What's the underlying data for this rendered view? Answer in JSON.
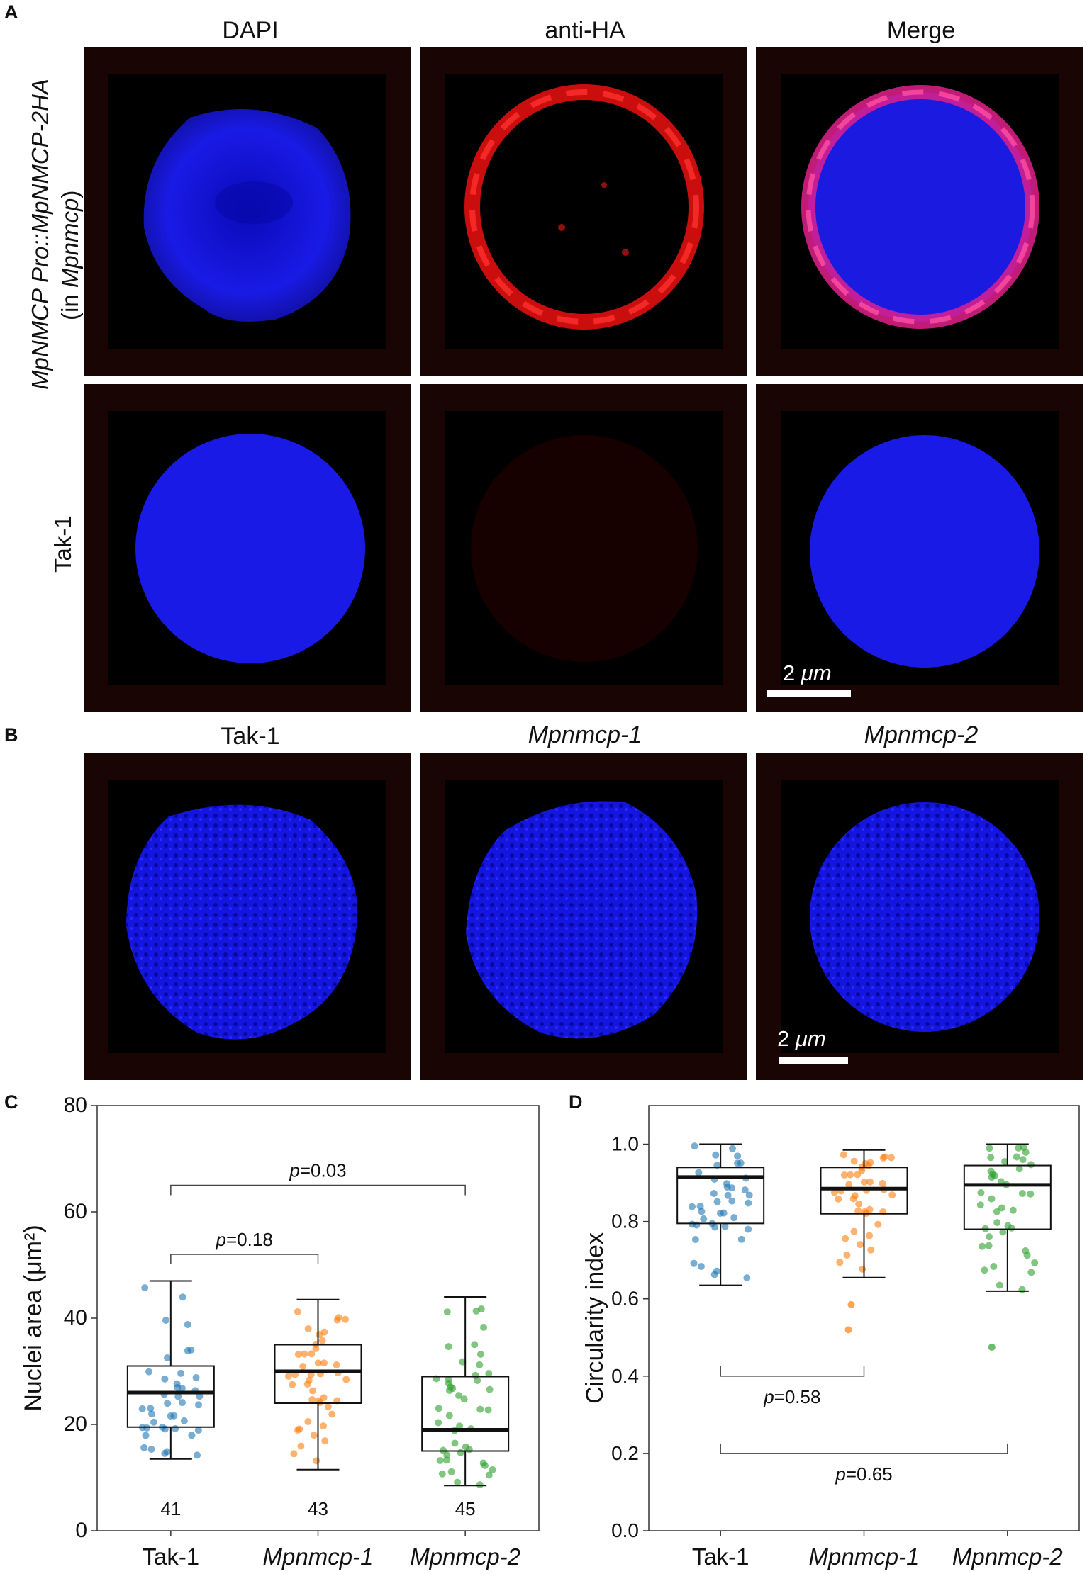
{
  "panel_a": {
    "letter": "A",
    "columns": [
      "DAPI",
      "anti-HA",
      "Merge"
    ],
    "row1_label_italic": "MpNMCP Pro::MpNMCP-2HA",
    "row1_label_sub_prefix": "(in ",
    "row1_label_sub_italic": "Mpnmcp",
    "row1_label_sub_suffix": ")",
    "row2_label": "Tak-1",
    "scale_label_num": "2 ",
    "scale_label_unit": "μm"
  },
  "panel_b": {
    "letter": "B",
    "columns": [
      "Tak-1",
      "Mpnmcp-1",
      "Mpnmcp-2"
    ],
    "scale_label_num": "2 ",
    "scale_label_unit": "μm"
  },
  "panel_c": {
    "letter": "C"
  },
  "panel_d": {
    "letter": "D"
  },
  "colors": {
    "blue": "#1f77b4",
    "orange": "#ff7f0e",
    "green": "#2ca02c",
    "dapi": "#1414e0",
    "ha": "#e01010"
  },
  "chart_data": [
    {
      "type": "box",
      "panel": "C",
      "ylabel": "Nuclei area (μm²)",
      "ylim": [
        0,
        80
      ],
      "yticks": [
        0,
        20,
        40,
        60,
        80
      ],
      "categories": [
        "Tak-1",
        "Mpnmcp-1",
        "Mpnmcp-2"
      ],
      "italic_categories": [
        false,
        true,
        true
      ],
      "boxes": [
        {
          "name": "Tak-1",
          "whisker_low": 13.5,
          "q1": 19.5,
          "median": 26,
          "q3": 31,
          "whisker_high": 47,
          "n": 41,
          "color": "#1f77b4"
        },
        {
          "name": "Mpnmcp-1",
          "whisker_low": 11.5,
          "q1": 24,
          "median": 30,
          "q3": 35,
          "whisker_high": 43.5,
          "n": 43,
          "color": "#ff7f0e"
        },
        {
          "name": "Mpnmcp-2",
          "whisker_low": 8.5,
          "q1": 15,
          "median": 19,
          "q3": 29,
          "whisker_high": 44,
          "n": 45,
          "color": "#2ca02c"
        }
      ],
      "n_labels": [
        "41",
        "43",
        "45"
      ],
      "comparisons": [
        {
          "from": 0,
          "to": 1,
          "y": 52,
          "label_p": "p",
          "label_value": "=0.18",
          "direction": "down"
        },
        {
          "from": 0,
          "to": 2,
          "y": 65,
          "label_p": "p",
          "label_value": "=0.03",
          "direction": "down"
        }
      ]
    },
    {
      "type": "box",
      "panel": "D",
      "ylabel": "Circularity index",
      "ylim": [
        0,
        1.1
      ],
      "yticks": [
        "0.0",
        "0.2",
        "0.4",
        "0.6",
        "0.8",
        "1.0"
      ],
      "categories": [
        "Tak-1",
        "Mpnmcp-1",
        "Mpnmcp-2"
      ],
      "italic_categories": [
        false,
        true,
        true
      ],
      "boxes": [
        {
          "name": "Tak-1",
          "whisker_low": 0.635,
          "q1": 0.795,
          "median": 0.915,
          "q3": 0.94,
          "whisker_high": 1.0,
          "color": "#1f77b4"
        },
        {
          "name": "Mpnmcp-1",
          "whisker_low": 0.655,
          "q1": 0.82,
          "median": 0.885,
          "q3": 0.94,
          "whisker_high": 0.985,
          "color": "#ff7f0e"
        },
        {
          "name": "Mpnmcp-2",
          "whisker_low": 0.62,
          "q1": 0.78,
          "median": 0.895,
          "q3": 0.945,
          "whisker_high": 1.0,
          "color": "#2ca02c"
        }
      ],
      "outliers": [
        {
          "group": 1,
          "value": 0.52
        },
        {
          "group": 1,
          "value": 0.585
        },
        {
          "group": 2,
          "value": 0.475
        }
      ],
      "comparisons": [
        {
          "from": 0,
          "to": 1,
          "y": 0.4,
          "label_p": "p",
          "label_value": "=0.58",
          "direction": "up"
        },
        {
          "from": 0,
          "to": 2,
          "y": 0.2,
          "label_p": "p",
          "label_value": "=0.65",
          "direction": "up"
        }
      ]
    }
  ]
}
